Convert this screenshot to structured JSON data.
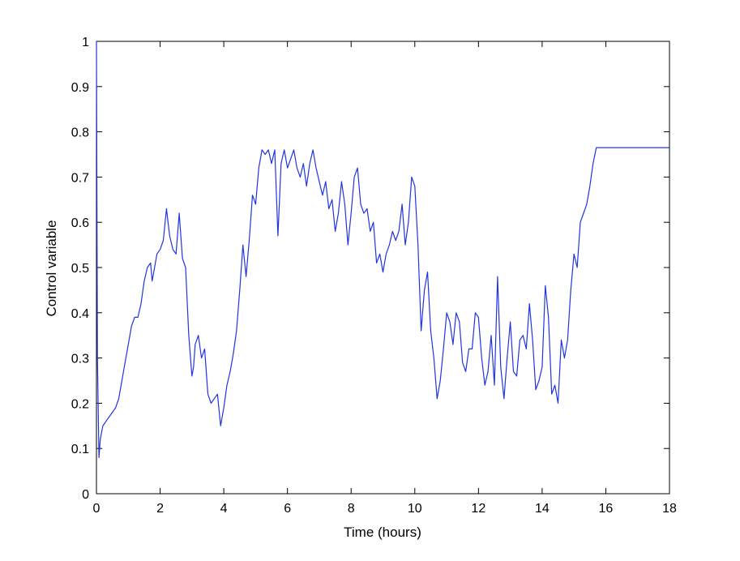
{
  "chart_data": {
    "type": "line",
    "title": "",
    "xlabel": "Time (hours)",
    "ylabel": "Control variable",
    "xlim": [
      0,
      18
    ],
    "ylim": [
      0,
      1
    ],
    "xticks": [
      0,
      2,
      4,
      6,
      8,
      10,
      12,
      14,
      16,
      18
    ],
    "yticks": [
      0,
      0.1,
      0.2,
      0.3,
      0.4,
      0.5,
      0.6,
      0.7,
      0.8,
      0.9,
      1
    ],
    "grid": false,
    "legend": "none",
    "line_color": "#2034e0",
    "series": [
      {
        "x": [
          0,
          0.03,
          0.08,
          0.12,
          0.2,
          0.3,
          0.4,
          0.5,
          0.6,
          0.7,
          0.8,
          0.9,
          1.0,
          1.1,
          1.2,
          1.3,
          1.4,
          1.5,
          1.6,
          1.7,
          1.75,
          1.8,
          1.9,
          2.0,
          2.1,
          2.2,
          2.3,
          2.4,
          2.5,
          2.6,
          2.7,
          2.8,
          2.9,
          3.0,
          3.05,
          3.1,
          3.2,
          3.3,
          3.4,
          3.5,
          3.6,
          3.7,
          3.8,
          3.9,
          4.0,
          4.1,
          4.2,
          4.3,
          4.4,
          4.5,
          4.6,
          4.7,
          4.8,
          4.9,
          5.0,
          5.1,
          5.2,
          5.3,
          5.4,
          5.5,
          5.6,
          5.7,
          5.8,
          5.9,
          6.0,
          6.1,
          6.2,
          6.3,
          6.4,
          6.5,
          6.6,
          6.7,
          6.8,
          6.9,
          7.0,
          7.1,
          7.2,
          7.3,
          7.4,
          7.5,
          7.6,
          7.7,
          7.8,
          7.9,
          8.0,
          8.1,
          8.2,
          8.3,
          8.4,
          8.5,
          8.6,
          8.7,
          8.8,
          8.9,
          9.0,
          9.1,
          9.2,
          9.3,
          9.4,
          9.5,
          9.6,
          9.7,
          9.8,
          9.9,
          10.0,
          10.1,
          10.2,
          10.3,
          10.4,
          10.5,
          10.6,
          10.7,
          10.8,
          10.9,
          11.0,
          11.1,
          11.2,
          11.3,
          11.4,
          11.5,
          11.6,
          11.7,
          11.8,
          11.9,
          12.0,
          12.1,
          12.2,
          12.3,
          12.4,
          12.5,
          12.6,
          12.7,
          12.8,
          12.9,
          13.0,
          13.1,
          13.2,
          13.3,
          13.4,
          13.5,
          13.6,
          13.7,
          13.8,
          13.9,
          14.0,
          14.1,
          14.2,
          14.3,
          14.4,
          14.5,
          14.6,
          14.7,
          14.8,
          14.9,
          15.0,
          15.1,
          15.2,
          15.3,
          15.4,
          15.5,
          15.6,
          15.7,
          15.8,
          16.0,
          16.5,
          17.0,
          18.0
        ],
        "y": [
          1.0,
          0.3,
          0.08,
          0.12,
          0.15,
          0.16,
          0.17,
          0.18,
          0.19,
          0.21,
          0.25,
          0.29,
          0.33,
          0.37,
          0.39,
          0.39,
          0.42,
          0.47,
          0.5,
          0.51,
          0.47,
          0.49,
          0.53,
          0.54,
          0.56,
          0.63,
          0.57,
          0.54,
          0.53,
          0.62,
          0.52,
          0.5,
          0.35,
          0.26,
          0.28,
          0.33,
          0.35,
          0.3,
          0.32,
          0.22,
          0.2,
          0.21,
          0.22,
          0.15,
          0.19,
          0.24,
          0.27,
          0.31,
          0.36,
          0.45,
          0.55,
          0.48,
          0.56,
          0.66,
          0.64,
          0.72,
          0.76,
          0.75,
          0.76,
          0.73,
          0.76,
          0.57,
          0.73,
          0.76,
          0.72,
          0.74,
          0.76,
          0.72,
          0.7,
          0.73,
          0.68,
          0.73,
          0.76,
          0.72,
          0.69,
          0.66,
          0.69,
          0.63,
          0.65,
          0.58,
          0.62,
          0.69,
          0.64,
          0.55,
          0.62,
          0.7,
          0.72,
          0.64,
          0.62,
          0.63,
          0.58,
          0.6,
          0.51,
          0.53,
          0.49,
          0.53,
          0.55,
          0.58,
          0.56,
          0.58,
          0.64,
          0.55,
          0.6,
          0.7,
          0.68,
          0.55,
          0.36,
          0.45,
          0.49,
          0.36,
          0.3,
          0.21,
          0.25,
          0.32,
          0.4,
          0.38,
          0.33,
          0.4,
          0.38,
          0.29,
          0.27,
          0.32,
          0.32,
          0.4,
          0.39,
          0.3,
          0.24,
          0.27,
          0.35,
          0.24,
          0.48,
          0.28,
          0.21,
          0.3,
          0.38,
          0.27,
          0.26,
          0.34,
          0.35,
          0.32,
          0.42,
          0.34,
          0.23,
          0.25,
          0.28,
          0.46,
          0.39,
          0.22,
          0.24,
          0.2,
          0.34,
          0.3,
          0.34,
          0.45,
          0.53,
          0.5,
          0.6,
          0.62,
          0.64,
          0.68,
          0.73,
          0.765,
          0.765,
          0.765,
          0.765,
          0.765,
          0.765
        ]
      }
    ]
  }
}
